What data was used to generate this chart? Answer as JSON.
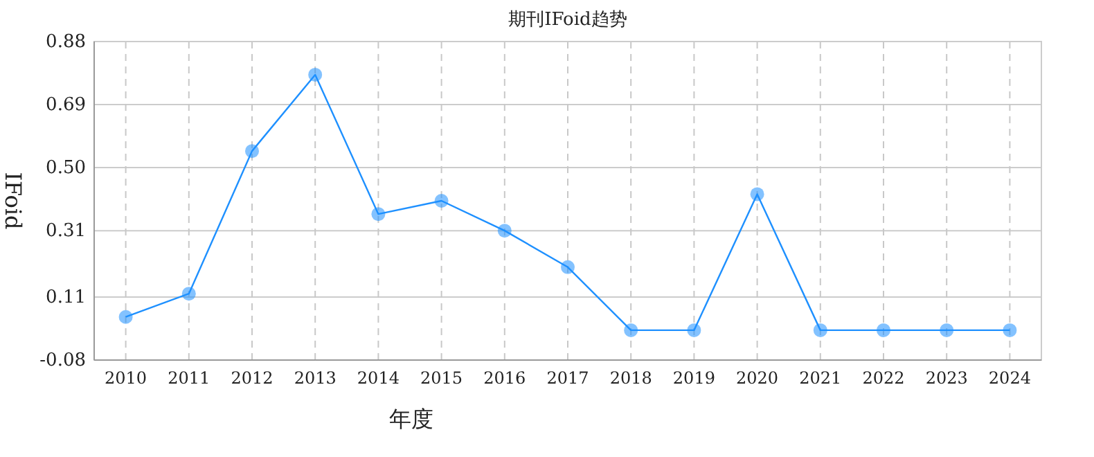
{
  "chart_data": {
    "type": "line",
    "title": "期刊IFoid趋势",
    "xlabel": "年度",
    "ylabel": "IFoid",
    "categories": [
      "2010",
      "2011",
      "2012",
      "2013",
      "2014",
      "2015",
      "2016",
      "2017",
      "2018",
      "2019",
      "2020",
      "2021",
      "2022",
      "2023",
      "2024"
    ],
    "series": [
      {
        "color": "#1e90ff",
        "values": [
          0.05,
          0.12,
          0.55,
          0.78,
          0.36,
          0.4,
          0.31,
          0.2,
          0.01,
          0.01,
          0.42,
          0.01,
          0.01,
          0.01,
          0.01
        ]
      }
    ],
    "ylim": [
      -0.08,
      0.88
    ],
    "yticks": [
      -0.08,
      0.11,
      0.31,
      {
        "value": 0.5,
        "label": "0.50"
      },
      0.69,
      0.88
    ],
    "grid": true,
    "marker": "circle",
    "line_style": "solid"
  }
}
